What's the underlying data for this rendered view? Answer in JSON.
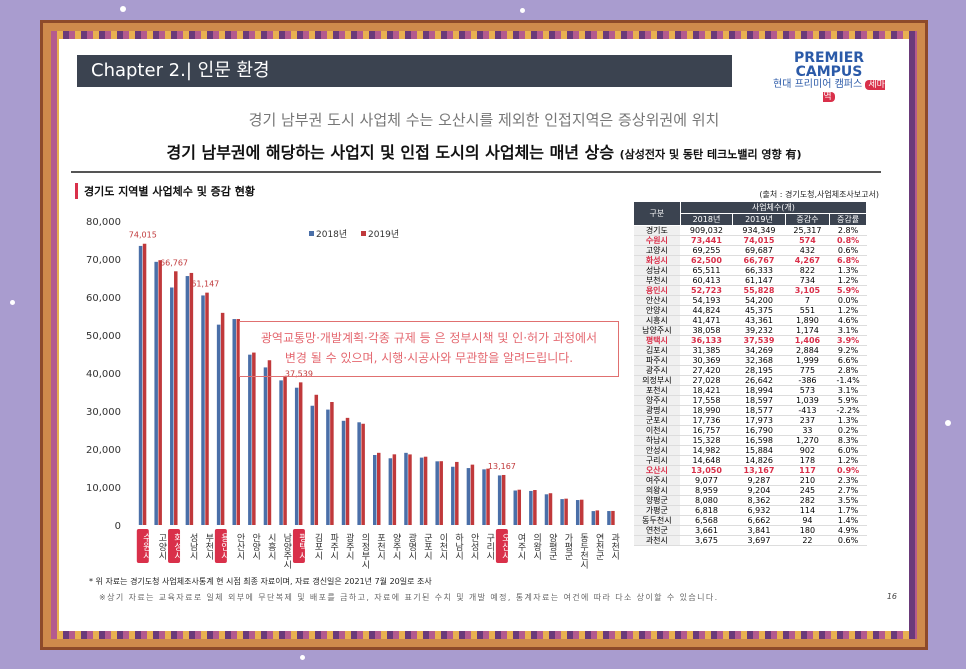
{
  "header": {
    "chapter": "Chapter  2.|  인문 환경",
    "brand": {
      "line1": "PREMIER",
      "line2": "CAMPUS",
      "line3": "현대 프리미어 캠퍼스",
      "badge": "세마역"
    }
  },
  "subtitle1": "경기 남부권 도시 사업체 수는 오산시를 제외한 인접지역은 증상위권에 위치",
  "subtitle2": "경기 남부권에 해당하는 사업지 및 인접 도시의 사업체는 매년 상승",
  "subtitle2_note": "(삼성전자 및 동탄 테크노밸리 영향 有)",
  "chart_title": "경기도 지역별 사업체수 및 증감 현황",
  "source": "(출처 : 경기도청,사업체조사보고서)",
  "overlay": {
    "line1": "광역교통망·개발계획·각종 규제 등 은 정부시책 및 인·허가 과정에서",
    "line2": "변경 될 수 있으며, 시행·시공사와 무관함을 알려드립니다."
  },
  "footnote": "* 위 자료는 경기도청 사업체조사통계 현 시점 최종 자료이며, 자료 갱신일은 2021년 7월 20일로 조사",
  "bottom_note": "※상기 자료는 교육자료로 일체 외부에 무단복제 및 배포를 금하고, 자료에 표기된 수치 및 개발 예정, 통계자료는 여건에 따라 다소 상이할 수 있습니다.",
  "page_number": "16",
  "colors": {
    "series2018": "#4a6fa8",
    "series2019": "#c0393b",
    "highlight": "#d9304a"
  },
  "chart_data": {
    "type": "bar",
    "title": "경기도 지역별 사업체수 및 증감 현황",
    "ylim": [
      0,
      80000
    ],
    "yticks": [
      "0",
      "10,000",
      "20,000",
      "30,000",
      "40,000",
      "50,000",
      "60,000",
      "70,000",
      "80,000"
    ],
    "legend_position": "top",
    "grid": false,
    "categories": [
      "수원시",
      "고양시",
      "화성시",
      "성남시",
      "부천시",
      "용인시",
      "안산시",
      "안양시",
      "시흥시",
      "남양주시",
      "평택시",
      "김포시",
      "파주시",
      "광주시",
      "의정부시",
      "포천시",
      "양주시",
      "광명시",
      "군포시",
      "이천시",
      "하남시",
      "안성시",
      "구리시",
      "오산시",
      "여주시",
      "의왕시",
      "양평군",
      "가평군",
      "동두천시",
      "연천군",
      "과천시"
    ],
    "highlighted": [
      "수원시",
      "화성시",
      "용인시",
      "평택시",
      "오산시"
    ],
    "series": [
      {
        "name": "2018년",
        "values": [
          73441,
          69255,
          62500,
          65511,
          60413,
          52723,
          54193,
          44824,
          41471,
          38058,
          36133,
          31385,
          30369,
          27420,
          27028,
          18421,
          17558,
          18990,
          17736,
          16757,
          15328,
          14982,
          14648,
          13050,
          9077,
          8959,
          8080,
          6818,
          6568,
          3661,
          3675
        ]
      },
      {
        "name": "2019년",
        "values": [
          74015,
          69687,
          66767,
          66333,
          61147,
          55828,
          54200,
          45375,
          43361,
          39232,
          37539,
          34269,
          32368,
          28195,
          26642,
          18994,
          18597,
          18577,
          17973,
          16790,
          16598,
          15884,
          14826,
          13167,
          9287,
          9204,
          8362,
          6932,
          6662,
          3841,
          3697
        ]
      }
    ],
    "data_labels": [
      {
        "category": "수원시",
        "text": "74,015"
      },
      {
        "category": "화성시",
        "text": "66,767"
      },
      {
        "category": "부천시",
        "text": "61,147"
      },
      {
        "category": "평택시",
        "text": "37,539"
      },
      {
        "category": "오산시",
        "text": "13,167"
      }
    ]
  },
  "table": {
    "header_region": "구분",
    "header_group": "사업체수(개)",
    "columns": [
      "2018년",
      "2019년",
      "증감수",
      "증감률"
    ],
    "rows": [
      {
        "region": "경기도",
        "y2018": "909,032",
        "y2019": "934,349",
        "diff": "25,317",
        "rate": "2.8%",
        "hl": false
      },
      {
        "region": "수원시",
        "y2018": "73,441",
        "y2019": "74,015",
        "diff": "574",
        "rate": "0.8%",
        "hl": true
      },
      {
        "region": "고양시",
        "y2018": "69,255",
        "y2019": "69,687",
        "diff": "432",
        "rate": "0.6%",
        "hl": false
      },
      {
        "region": "화성시",
        "y2018": "62,500",
        "y2019": "66,767",
        "diff": "4,267",
        "rate": "6.8%",
        "hl": true
      },
      {
        "region": "성남시",
        "y2018": "65,511",
        "y2019": "66,333",
        "diff": "822",
        "rate": "1.3%",
        "hl": false
      },
      {
        "region": "부천시",
        "y2018": "60,413",
        "y2019": "61,147",
        "diff": "734",
        "rate": "1.2%",
        "hl": false
      },
      {
        "region": "용인시",
        "y2018": "52,723",
        "y2019": "55,828",
        "diff": "3,105",
        "rate": "5.9%",
        "hl": true
      },
      {
        "region": "안산시",
        "y2018": "54,193",
        "y2019": "54,200",
        "diff": "7",
        "rate": "0.0%",
        "hl": false
      },
      {
        "region": "안양시",
        "y2018": "44,824",
        "y2019": "45,375",
        "diff": "551",
        "rate": "1.2%",
        "hl": false
      },
      {
        "region": "시흥시",
        "y2018": "41,471",
        "y2019": "43,361",
        "diff": "1,890",
        "rate": "4.6%",
        "hl": false
      },
      {
        "region": "남양주시",
        "y2018": "38,058",
        "y2019": "39,232",
        "diff": "1,174",
        "rate": "3.1%",
        "hl": false
      },
      {
        "region": "평택시",
        "y2018": "36,133",
        "y2019": "37,539",
        "diff": "1,406",
        "rate": "3.9%",
        "hl": true
      },
      {
        "region": "김포시",
        "y2018": "31,385",
        "y2019": "34,269",
        "diff": "2,884",
        "rate": "9.2%",
        "hl": false
      },
      {
        "region": "파주시",
        "y2018": "30,369",
        "y2019": "32,368",
        "diff": "1,999",
        "rate": "6.6%",
        "hl": false
      },
      {
        "region": "광주시",
        "y2018": "27,420",
        "y2019": "28,195",
        "diff": "775",
        "rate": "2.8%",
        "hl": false
      },
      {
        "region": "의정부시",
        "y2018": "27,028",
        "y2019": "26,642",
        "diff": "-386",
        "rate": "-1.4%",
        "hl": false
      },
      {
        "region": "포천시",
        "y2018": "18,421",
        "y2019": "18,994",
        "diff": "573",
        "rate": "3.1%",
        "hl": false
      },
      {
        "region": "양주시",
        "y2018": "17,558",
        "y2019": "18,597",
        "diff": "1,039",
        "rate": "5.9%",
        "hl": false
      },
      {
        "region": "광명시",
        "y2018": "18,990",
        "y2019": "18,577",
        "diff": "-413",
        "rate": "-2.2%",
        "hl": false
      },
      {
        "region": "군포시",
        "y2018": "17,736",
        "y2019": "17,973",
        "diff": "237",
        "rate": "1.3%",
        "hl": false
      },
      {
        "region": "이천시",
        "y2018": "16,757",
        "y2019": "16,790",
        "diff": "33",
        "rate": "0.2%",
        "hl": false
      },
      {
        "region": "하남시",
        "y2018": "15,328",
        "y2019": "16,598",
        "diff": "1,270",
        "rate": "8.3%",
        "hl": false
      },
      {
        "region": "안성시",
        "y2018": "14,982",
        "y2019": "15,884",
        "diff": "902",
        "rate": "6.0%",
        "hl": false
      },
      {
        "region": "구리시",
        "y2018": "14,648",
        "y2019": "14,826",
        "diff": "178",
        "rate": "1.2%",
        "hl": false
      },
      {
        "region": "오산시",
        "y2018": "13,050",
        "y2019": "13,167",
        "diff": "117",
        "rate": "0.9%",
        "hl": true
      },
      {
        "region": "여주시",
        "y2018": "9,077",
        "y2019": "9,287",
        "diff": "210",
        "rate": "2.3%",
        "hl": false
      },
      {
        "region": "의왕시",
        "y2018": "8,959",
        "y2019": "9,204",
        "diff": "245",
        "rate": "2.7%",
        "hl": false
      },
      {
        "region": "양평군",
        "y2018": "8,080",
        "y2019": "8,362",
        "diff": "282",
        "rate": "3.5%",
        "hl": false
      },
      {
        "region": "가평군",
        "y2018": "6,818",
        "y2019": "6,932",
        "diff": "114",
        "rate": "1.7%",
        "hl": false
      },
      {
        "region": "동두천시",
        "y2018": "6,568",
        "y2019": "6,662",
        "diff": "94",
        "rate": "1.4%",
        "hl": false
      },
      {
        "region": "연천군",
        "y2018": "3,661",
        "y2019": "3,841",
        "diff": "180",
        "rate": "4.9%",
        "hl": false
      },
      {
        "region": "과천시",
        "y2018": "3,675",
        "y2019": "3,697",
        "diff": "22",
        "rate": "0.6%",
        "hl": false
      }
    ]
  }
}
